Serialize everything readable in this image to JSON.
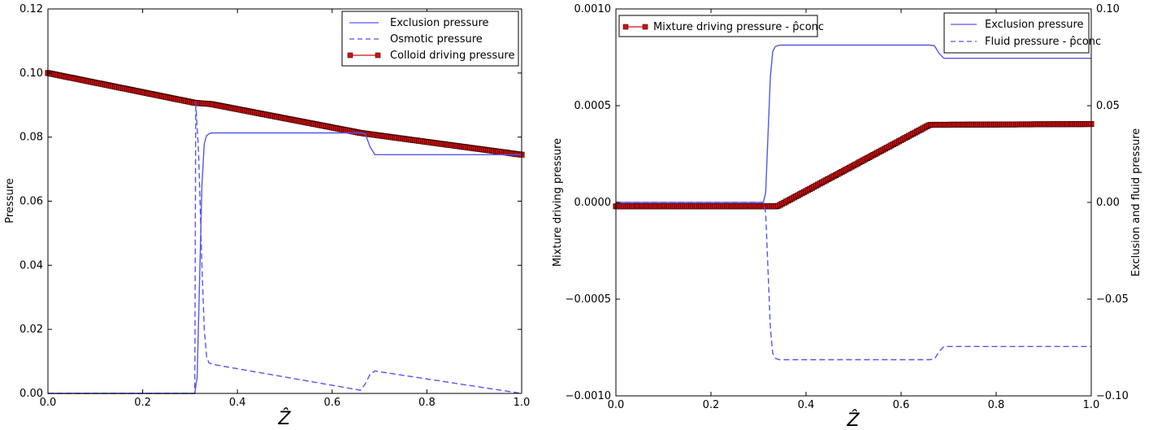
{
  "chart_data": [
    {
      "type": "line",
      "xlabel": "Ẑ",
      "ylabel": "Pressure",
      "xlim": [
        0,
        1
      ],
      "ylim": [
        0,
        0.12
      ],
      "xticks": [
        "0.0",
        "0.2",
        "0.4",
        "0.6",
        "0.8",
        "1.0"
      ],
      "yticks": [
        "0.00",
        "0.02",
        "0.04",
        "0.06",
        "0.08",
        "0.10",
        "0.12"
      ],
      "legend_position": "top-right",
      "series": [
        {
          "name": "Exclusion pressure",
          "style": "solid",
          "color": "#5555ee",
          "x": [
            0,
            0.31,
            0.315,
            0.32,
            0.325,
            0.33,
            0.335,
            0.34,
            0.345,
            0.66,
            0.67,
            0.68,
            0.69,
            1.0
          ],
          "y": [
            0,
            0,
            0.005,
            0.035,
            0.065,
            0.078,
            0.0805,
            0.081,
            0.0813,
            0.0813,
            0.081,
            0.077,
            0.0745,
            0.0745
          ]
        },
        {
          "name": "Osmotic pressure",
          "style": "dashed",
          "color": "#5555ee",
          "x": [
            0,
            0.31,
            0.312,
            0.318,
            0.325,
            0.33,
            0.335,
            0.34,
            0.35,
            0.66,
            0.67,
            0.68,
            0.69,
            1.0
          ],
          "y": [
            0,
            0,
            0.091,
            0.075,
            0.04,
            0.02,
            0.0115,
            0.0095,
            0.009,
            0.001,
            0.003,
            0.006,
            0.007,
            0
          ]
        },
        {
          "name": "Colloid driving pressure",
          "style": "markers",
          "color": "#cc1111",
          "x": [
            0,
            0.31,
            0.345,
            0.66,
            1.0
          ],
          "y": [
            0.1,
            0.0907,
            0.0903,
            0.0813,
            0.0745
          ]
        }
      ]
    },
    {
      "type": "line",
      "xlabel": "Ẑ",
      "ylabel": "Mixture driving pressure",
      "y2label": "Exclusion and fluid pressure",
      "xlim": [
        0,
        1
      ],
      "ylim": [
        -0.001,
        0.001
      ],
      "y2lim": [
        -0.1,
        0.1
      ],
      "xticks": [
        "0.0",
        "0.2",
        "0.4",
        "0.6",
        "0.8",
        "1.0"
      ],
      "yticks": [
        "−0.0010",
        "−0.0005",
        "0.0000",
        "0.0005",
        "0.0010"
      ],
      "y2ticks": [
        "−0.10",
        "−0.05",
        "0.00",
        "0.05",
        "0.10"
      ],
      "legend_left": {
        "position": "top-left"
      },
      "legend_right": {
        "position": "top-right"
      },
      "series": [
        {
          "name": "Mixture driving pressure - p̂conc",
          "axis": "left",
          "style": "markers",
          "color": "#cc1111",
          "x": [
            0,
            0.34,
            0.66,
            1.0
          ],
          "y": [
            -2e-05,
            -2e-05,
            0.000401,
            0.000405
          ]
        },
        {
          "name": "Exclusion pressure",
          "axis": "right",
          "style": "solid",
          "color": "#5555ee",
          "x": [
            0,
            0.31,
            0.315,
            0.32,
            0.325,
            0.33,
            0.335,
            0.34,
            0.345,
            0.66,
            0.67,
            0.68,
            0.69,
            1.0
          ],
          "y": [
            0,
            0,
            0.005,
            0.035,
            0.065,
            0.078,
            0.0805,
            0.081,
            0.0813,
            0.0813,
            0.081,
            0.077,
            0.0745,
            0.0745
          ]
        },
        {
          "name": "Fluid pressure - p̂conc",
          "axis": "right",
          "style": "dashed",
          "color": "#5555ee",
          "x": [
            0,
            0.31,
            0.315,
            0.32,
            0.325,
            0.33,
            0.335,
            0.34,
            0.345,
            0.66,
            0.67,
            0.68,
            0.69,
            1.0
          ],
          "y": [
            0,
            0,
            -0.005,
            -0.035,
            -0.065,
            -0.078,
            -0.0805,
            -0.081,
            -0.0813,
            -0.0813,
            -0.081,
            -0.077,
            -0.0745,
            -0.0745
          ]
        }
      ]
    }
  ]
}
